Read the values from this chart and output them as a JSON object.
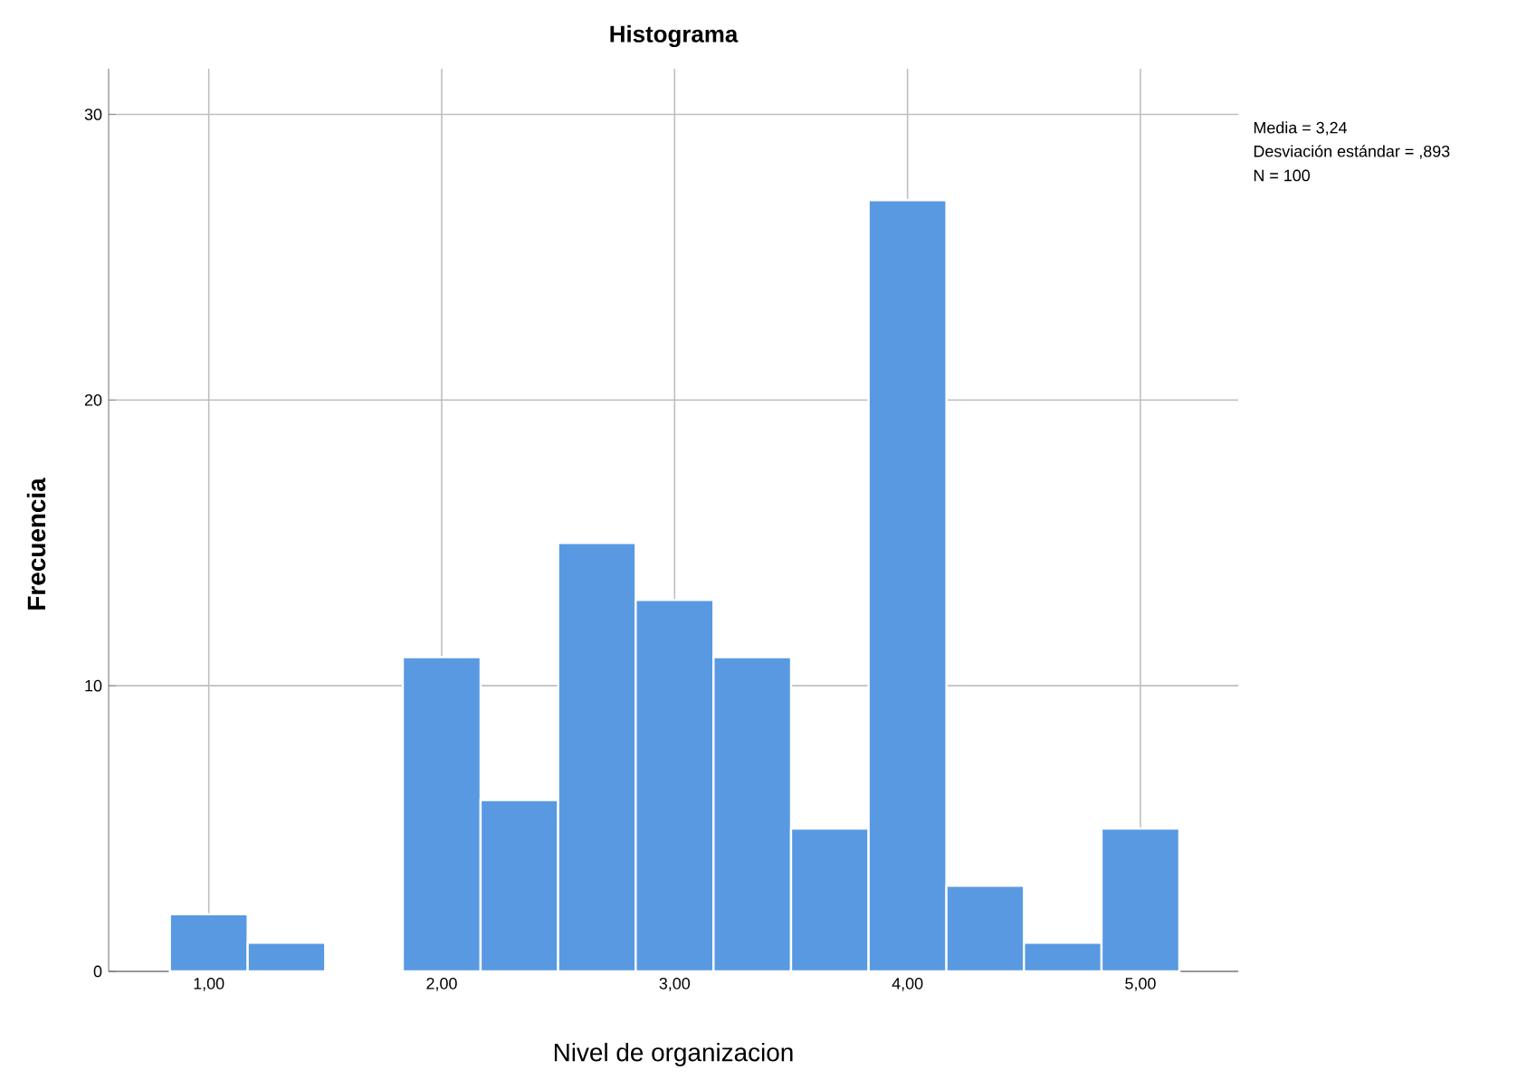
{
  "chart_data": {
    "type": "histogram",
    "title": "Histograma",
    "xlabel": "Nivel de organizacion",
    "ylabel": "Frecuencia",
    "bins": [
      0.833,
      1.167,
      1.5,
      1.833,
      2.167,
      2.5,
      2.833,
      3.167,
      3.5,
      3.833,
      4.167,
      4.5,
      4.833,
      5.167
    ],
    "values": [
      2,
      1,
      0,
      11,
      6,
      15,
      13,
      11,
      5,
      27,
      3,
      1,
      5
    ],
    "color": "#5899e2",
    "xlim": [
      0.57,
      5.42
    ],
    "ylim": [
      0,
      31.6
    ],
    "xticks": [
      {
        "value": 1,
        "label": "1,00"
      },
      {
        "value": 2,
        "label": "2,00"
      },
      {
        "value": 3,
        "label": "3,00"
      },
      {
        "value": 4,
        "label": "4,00"
      },
      {
        "value": 5,
        "label": "5,00"
      }
    ],
    "yticks": [
      0,
      10,
      20,
      30
    ],
    "grid": true,
    "annotations": [
      "Media = 3,24",
      "Desviación estándar = ,893",
      "N = 100"
    ]
  }
}
